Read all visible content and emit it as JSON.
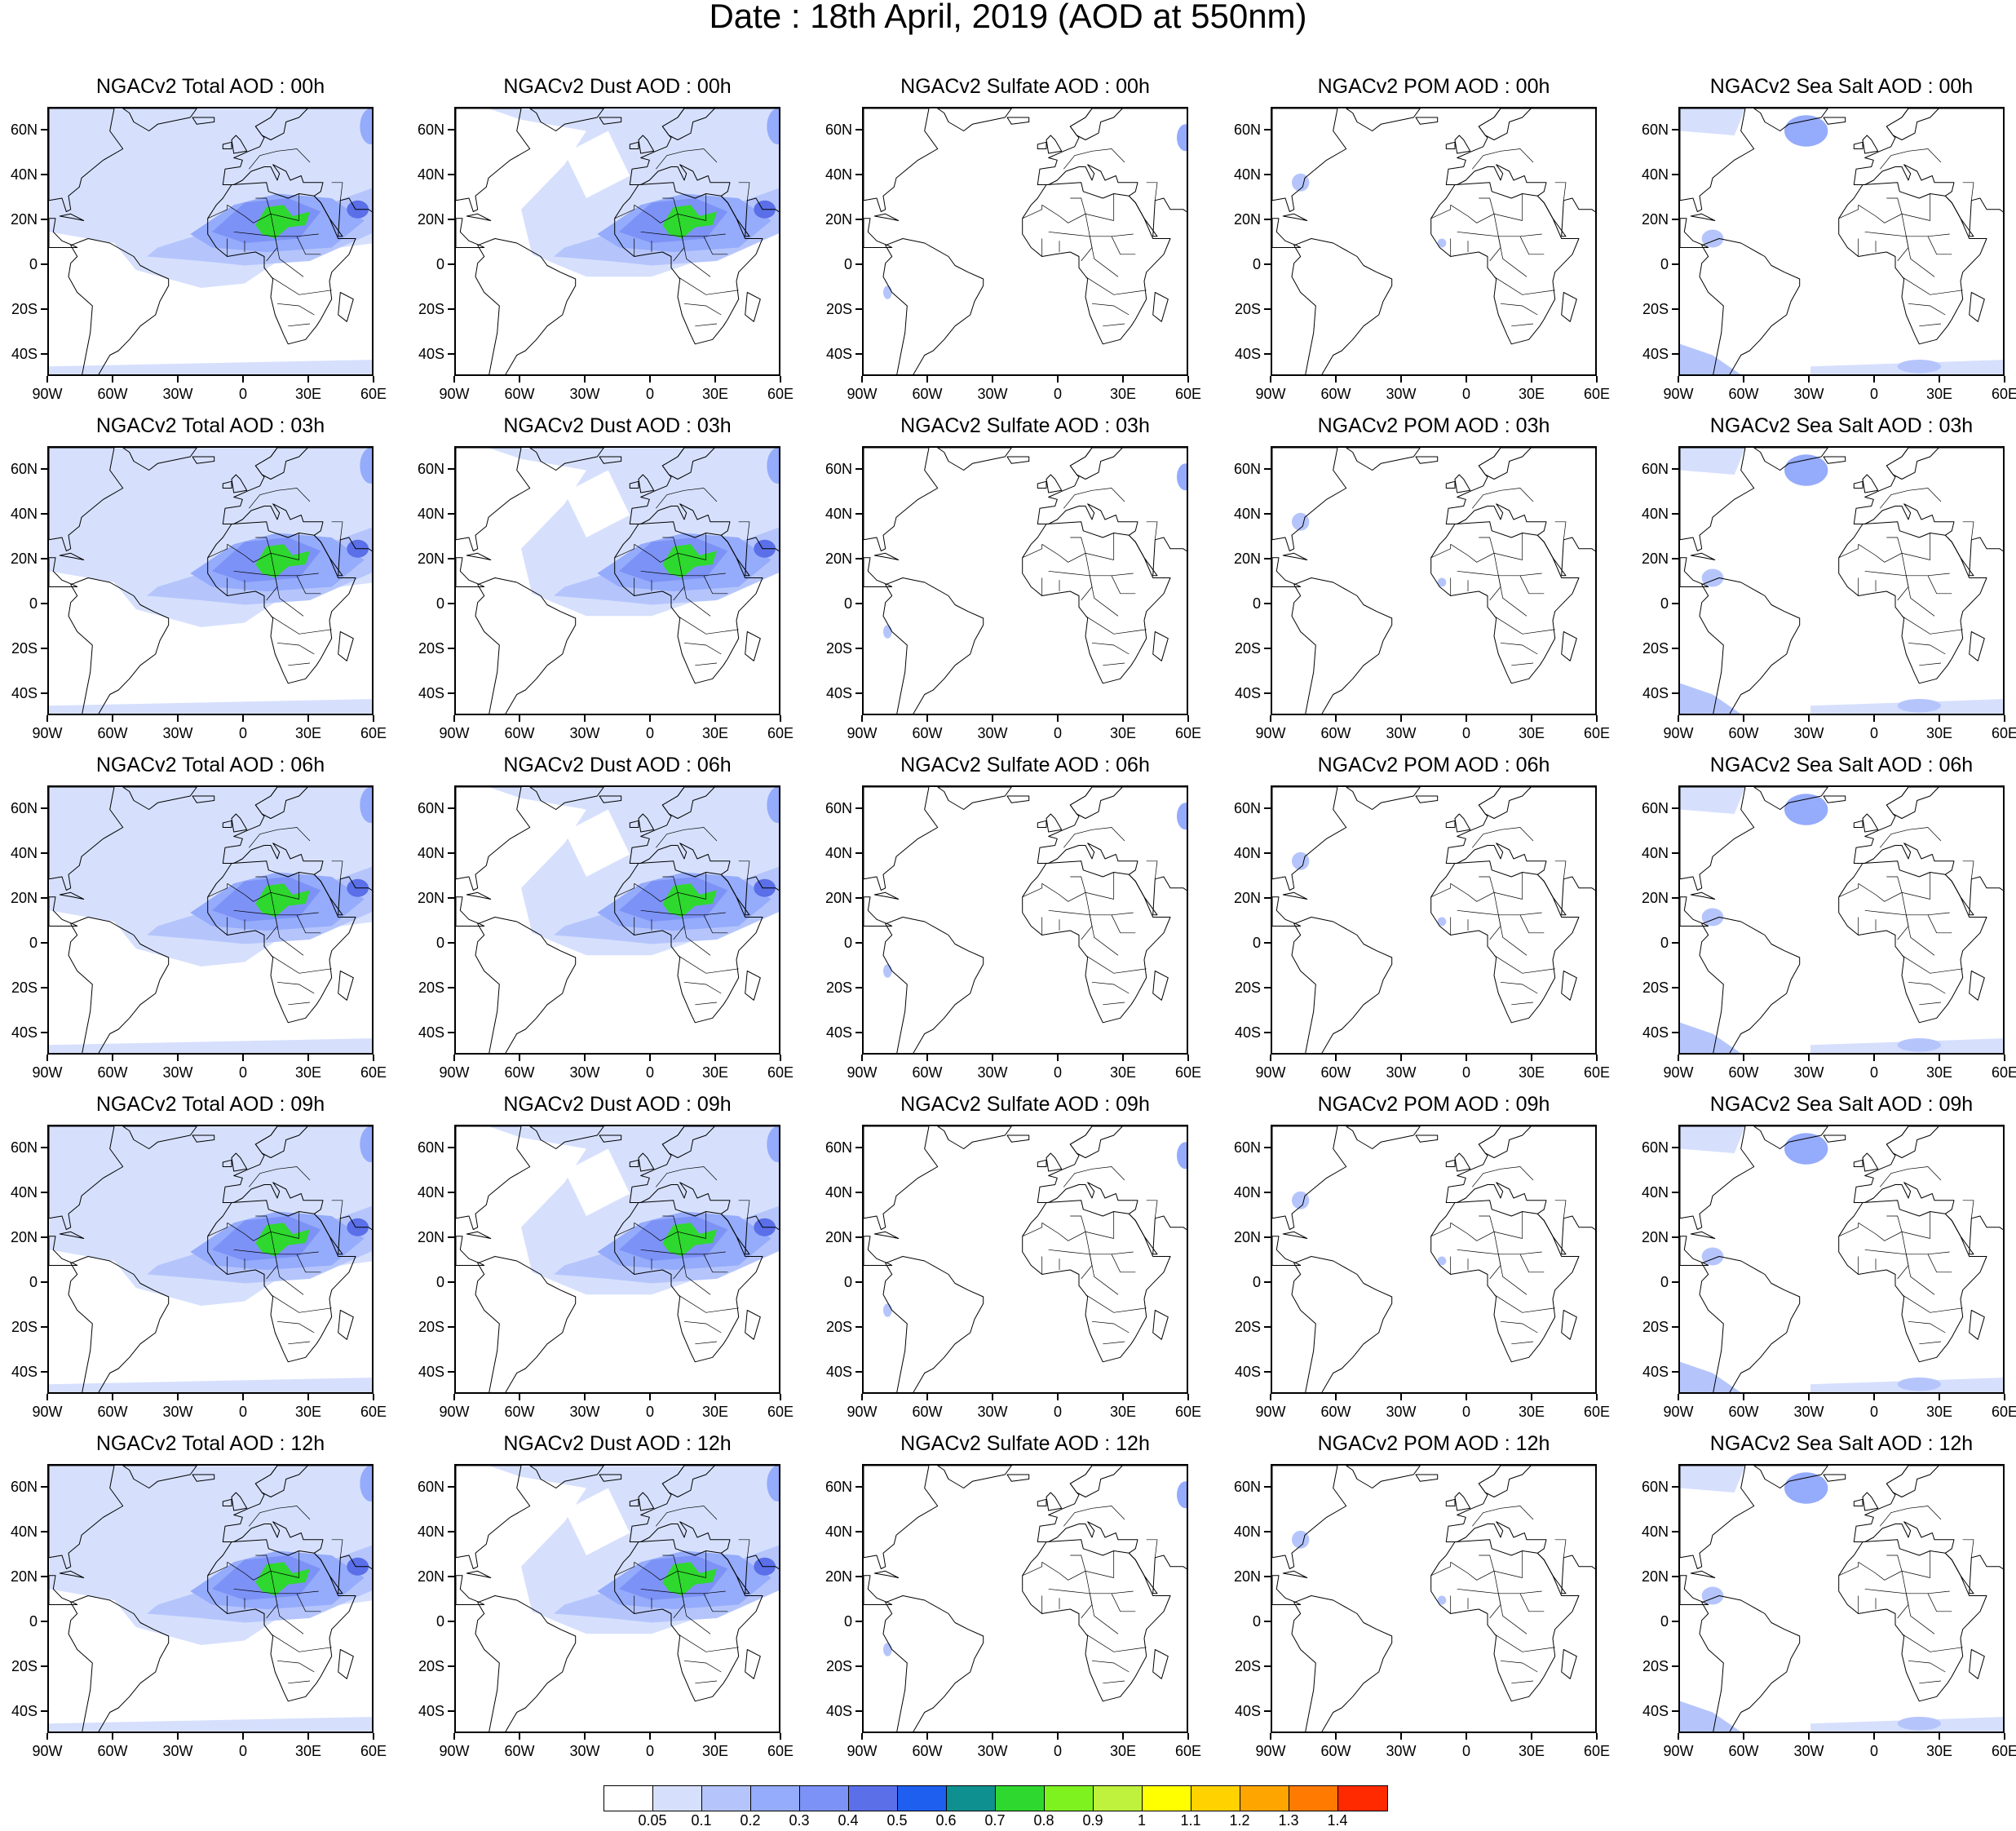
{
  "figure_title": "Date : 18th April, 2019 (AOD at 550nm)",
  "panel_titles": [
    [
      "NGACv2 Total AOD : 00h",
      "NGACv2 Dust AOD : 00h",
      "NGACv2 Sulfate AOD : 00h",
      "NGACv2 POM AOD : 00h",
      "NGACv2 Sea Salt AOD : 00h"
    ],
    [
      "NGACv2 Total AOD : 03h",
      "NGACv2 Dust AOD : 03h",
      "NGACv2 Sulfate AOD : 03h",
      "NGACv2 POM AOD : 03h",
      "NGACv2 Sea Salt AOD : 03h"
    ],
    [
      "NGACv2 Total AOD : 06h",
      "NGACv2 Dust AOD : 06h",
      "NGACv2 Sulfate AOD : 06h",
      "NGACv2 POM AOD : 06h",
      "NGACv2 Sea Salt AOD : 06h"
    ],
    [
      "NGACv2 Total AOD : 09h",
      "NGACv2 Dust AOD : 09h",
      "NGACv2 Sulfate AOD : 09h",
      "NGACv2 POM AOD : 09h",
      "NGACv2 Sea Salt  AOD : 09h"
    ],
    [
      "NGACv2 Total AOD  : 12h",
      "NGACv2 Dust AOD : 12h",
      "NGACv2 Sulfate AOD : 12h",
      "NGACv2 POM  AOD : 12h",
      "NGACv2 Sea Salt  AOD : 12h"
    ]
  ],
  "panel_types": [
    "total",
    "dust",
    "sulfate",
    "pom",
    "seasalt"
  ],
  "lat_ticks": [
    "60N",
    "40N",
    "20N",
    "0",
    "20S",
    "40S"
  ],
  "lon_ticks": [
    "90W",
    "60W",
    "30W",
    "0",
    "30E",
    "60E"
  ],
  "map_extent": {
    "lon_min": -90,
    "lon_max": 60,
    "lat_min": -50,
    "lat_max": 70
  },
  "colorbar": {
    "colors": [
      "#ffffff",
      "#d6e0fd",
      "#b5c5fc",
      "#95abfb",
      "#7d92f6",
      "#5a6fe8",
      "#1f5ff0",
      "#0f9090",
      "#2ed82e",
      "#7ef21f",
      "#bff23c",
      "#ffff00",
      "#ffd200",
      "#ffa500",
      "#ff7a00",
      "#ff2a00"
    ],
    "labels": [
      "0.05",
      "0.1",
      "0.2",
      "0.3",
      "0.4",
      "0.5",
      "0.6",
      "0.7",
      "0.8",
      "0.9",
      "1",
      "1.1",
      "1.2",
      "1.3",
      "1.4"
    ]
  }
}
